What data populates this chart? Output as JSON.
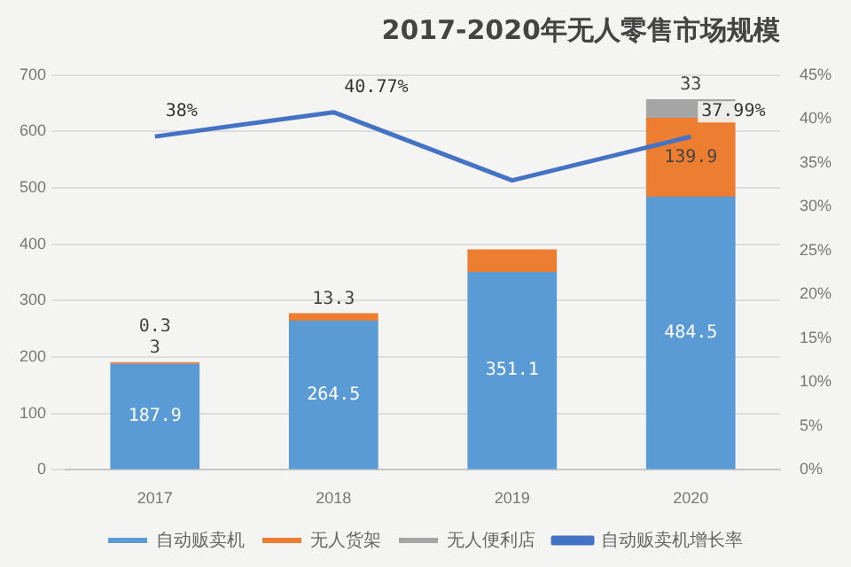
{
  "chart_data": {
    "type": "bar",
    "title": "2017-2020年无人零售市场规模",
    "categories": [
      "2017",
      "2018",
      "2019",
      "2020"
    ],
    "stacked": true,
    "series": [
      {
        "name": "自动贩卖机",
        "color": "#5b9bd5",
        "values": [
          187.9,
          264.5,
          351.1,
          484.5
        ],
        "value_labels": [
          "187.9",
          "264.5",
          "351.1",
          "484.5"
        ]
      },
      {
        "name": "无人货架",
        "color": "#ed7d31",
        "values": [
          3,
          13.3,
          40,
          139.9
        ],
        "value_labels": [
          "3",
          "13.3",
          null,
          "139.9"
        ]
      },
      {
        "name": "无人便利店",
        "color": "#a5a5a5",
        "values": [
          0.3,
          null,
          null,
          33
        ],
        "value_labels": [
          "0.3",
          null,
          null,
          "33"
        ]
      },
      {
        "name": "自动贩卖机增长率",
        "type": "line",
        "axis": "y2",
        "color": "#4472c4",
        "values": [
          38,
          40.77,
          33,
          37.99
        ],
        "value_labels": [
          "38%",
          "40.77%",
          null,
          "37.99%"
        ]
      }
    ],
    "ylim": [
      0,
      700
    ],
    "yticks": [
      0,
      100,
      200,
      300,
      400,
      500,
      600,
      700
    ],
    "y2lim": [
      0,
      45
    ],
    "y2ticks": [
      {
        "value": 0,
        "label": "0%"
      },
      {
        "value": 5,
        "label": "5%"
      },
      {
        "value": 10,
        "label": "10%"
      },
      {
        "value": 15,
        "label": "15%"
      },
      {
        "value": 20,
        "label": "20%"
      },
      {
        "value": 25,
        "label": "25%"
      },
      {
        "value": 30,
        "label": "30%"
      },
      {
        "value": 35,
        "label": "35%"
      },
      {
        "value": 40,
        "label": "40%"
      },
      {
        "value": 45,
        "label": "45%"
      }
    ],
    "grid": "y",
    "legend": "bottom",
    "marker": "none",
    "line_style": "solid"
  }
}
